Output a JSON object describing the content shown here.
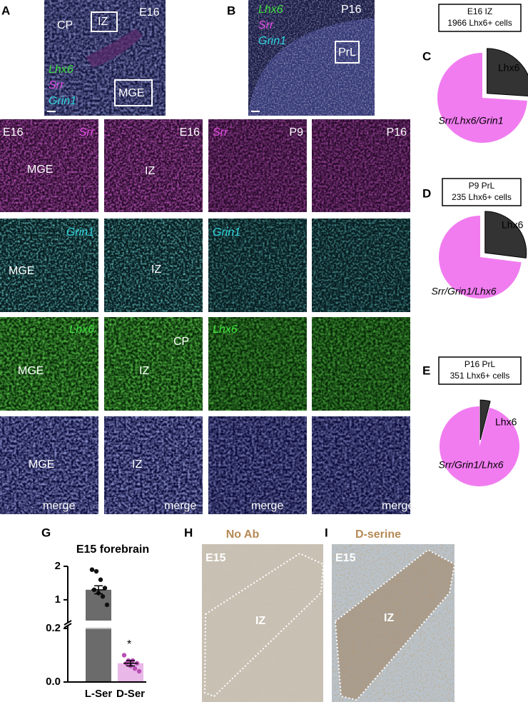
{
  "panel_letters": [
    "A",
    "B",
    "C",
    "D",
    "E",
    "G",
    "H",
    "I"
  ],
  "panel_a": {
    "labels": [
      "CP",
      "IZ",
      "E16",
      "Lhx6",
      "Srr",
      "Grin1",
      "MGE"
    ]
  },
  "panel_b": {
    "labels": [
      "Lhx6",
      "Srr",
      "Grin1",
      "P16",
      "PrL"
    ]
  },
  "grid": {
    "rows": [
      [
        [
          "E16",
          "Srr",
          "MGE"
        ],
        [
          "E16",
          "IZ"
        ],
        [
          "Srr",
          "P9"
        ],
        [
          "P16"
        ]
      ],
      [
        [
          "Grin1",
          "MGE"
        ],
        [
          "IZ"
        ],
        [
          "Grin1"
        ],
        []
      ],
      [
        [
          "Lhx6",
          "MGE"
        ],
        [
          "CP",
          "IZ"
        ],
        [
          "Lhx6"
        ],
        []
      ],
      [
        [
          "MGE",
          "merge"
        ],
        [
          "IZ",
          "merge"
        ],
        [
          "merge"
        ],
        [
          "merge"
        ]
      ]
    ]
  },
  "panel_h": {
    "title": "No Ab",
    "labels": [
      "E15",
      "IZ"
    ]
  },
  "panel_i": {
    "title": "D-serine",
    "labels": [
      "E15",
      "IZ"
    ]
  },
  "chart_data": [
    {
      "type": "pie",
      "title": "E16 IZ",
      "subtitle": "1966 Lhx6+ cells",
      "categories": [
        "Lhx6",
        "Srr/Lhx6/Grin1"
      ],
      "values": [
        26,
        74
      ],
      "colors": [
        "#333333",
        "#f17cf0"
      ]
    },
    {
      "type": "pie",
      "title": "P9 PrL",
      "subtitle": "235 Lhx6+ cells",
      "categories": [
        "Lhx6",
        "Srr/Grin1/Lhx6"
      ],
      "values": [
        27,
        73
      ],
      "colors": [
        "#333333",
        "#f17cf0"
      ]
    },
    {
      "type": "pie",
      "title": "P16 PrL",
      "subtitle": "351 Lhx6+ cells",
      "categories": [
        "Lhx6",
        "Srr/Grin1/Lhx6"
      ],
      "values": [
        4,
        96
      ],
      "colors": [
        "#333333",
        "#f17cf0"
      ]
    },
    {
      "type": "bar",
      "title": "E15 forebrain",
      "categories": [
        "L-Ser",
        "D-Ser"
      ],
      "values": [
        1.3,
        0.07
      ],
      "errors": [
        0.12,
        0.01
      ],
      "colors": [
        "#6b6b6b",
        "#eab8e8"
      ],
      "point_colors": [
        "#111111",
        "#b84fb5"
      ],
      "points": [
        [
          1.9,
          1.85,
          1.6,
          1.35,
          1.3,
          1.2,
          1.1,
          0.85
        ],
        [
          0.1,
          0.08,
          0.08,
          0.07,
          0.07,
          0.06,
          0.05,
          0.04
        ]
      ],
      "ylim": [
        0,
        2
      ],
      "ybreak": [
        0.2,
        0.4
      ],
      "yticks": [
        {
          "value": 0,
          "label": "0.0"
        },
        0.2,
        1,
        2
      ],
      "annotation": "*"
    }
  ]
}
